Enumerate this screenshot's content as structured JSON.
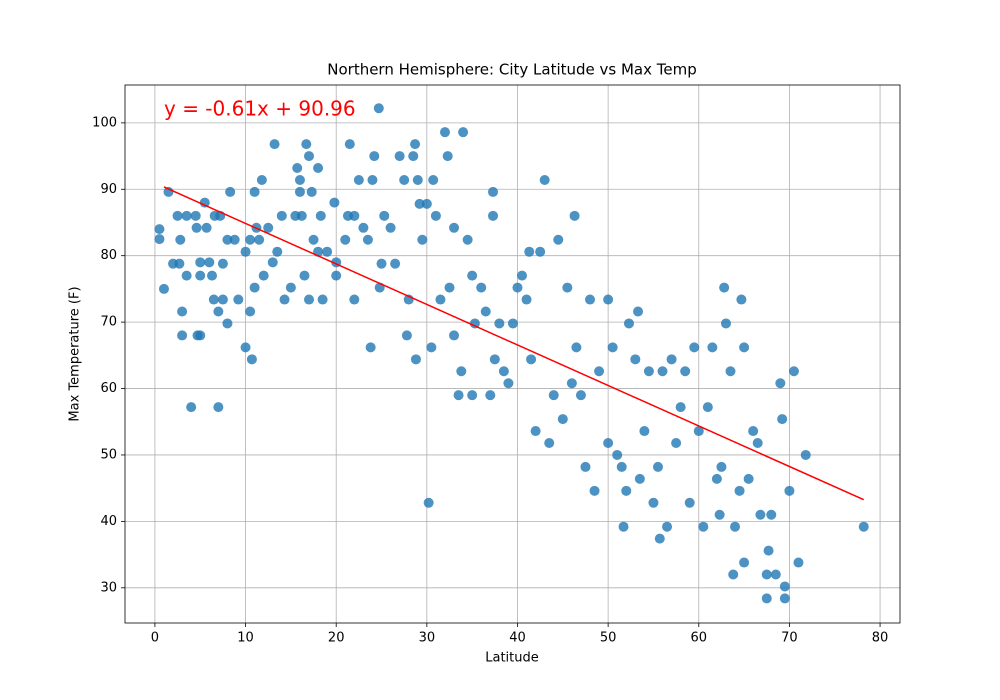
{
  "chart_data": {
    "type": "scatter",
    "title": "Northern Hemisphere: City Latitude vs Max Temp",
    "xlabel": "Latitude",
    "ylabel": "Max Temperature (F)",
    "annotation": "y = -0.61x + 90.96",
    "annotation_color": "#ff0000",
    "color": "#1f77b4",
    "grid": true,
    "xlim": [
      -3.3,
      82.2
    ],
    "ylim": [
      24.7,
      105.7
    ],
    "xticks": [
      0,
      10,
      20,
      30,
      40,
      50,
      60,
      70,
      80
    ],
    "yticks": [
      30,
      40,
      50,
      60,
      70,
      80,
      90,
      100
    ],
    "x": [
      0.5,
      0.5,
      1,
      1.5,
      2,
      2.5,
      2.7,
      2.8,
      3,
      3,
      3.5,
      3.5,
      4,
      4.5,
      4.6,
      4.7,
      5,
      5,
      5,
      5.5,
      5.7,
      6,
      6.3,
      6.5,
      6.6,
      7,
      7,
      7.2,
      7.5,
      7.5,
      8,
      8,
      8.3,
      8.8,
      9.2,
      10,
      10,
      10.5,
      10.5,
      10.7,
      11,
      11,
      11.2,
      11.5,
      11.8,
      12,
      12.5,
      13,
      13.2,
      13.5,
      14,
      14.3,
      15,
      15.5,
      15.7,
      16,
      16,
      16.2,
      16.5,
      16.7,
      17,
      17,
      17.3,
      17.5,
      18,
      18,
      18.3,
      18.5,
      19,
      19.8,
      20,
      20,
      21,
      21.3,
      21.5,
      22,
      22,
      22.5,
      23,
      23.5,
      23.8,
      24,
      24.2,
      24.7,
      24.8,
      25,
      25.3,
      26,
      26.5,
      27,
      27.5,
      27.8,
      28,
      28.5,
      28.7,
      28.8,
      29,
      29.2,
      29.5,
      30,
      30.2,
      30.5,
      30.7,
      31,
      31.5,
      32,
      32.3,
      32.5,
      33,
      33,
      33.5,
      33.8,
      34,
      34.5,
      35,
      35,
      35.3,
      36,
      36.5,
      37,
      37.3,
      37.3,
      37.5,
      38,
      38.5,
      39,
      39.5,
      40,
      40.5,
      41,
      41.3,
      41.5,
      42,
      42.5,
      43,
      43.5,
      44,
      44.5,
      45,
      45.5,
      46,
      46.3,
      46.5,
      47,
      47.5,
      48,
      48.5,
      49,
      50,
      50,
      50.5,
      51,
      51.5,
      51.7,
      52,
      52.3,
      53,
      53.3,
      53.5,
      54,
      54.5,
      55,
      55.5,
      55.7,
      56,
      56.5,
      57,
      57.5,
      58,
      58.5,
      59,
      59.5,
      60,
      60.5,
      61,
      61.5,
      62,
      62.3,
      62.5,
      62.8,
      63,
      63.5,
      63.8,
      64,
      64.5,
      64.7,
      65,
      65,
      65.5,
      66,
      66.5,
      66.8,
      67.5,
      67.5,
      67.7,
      68,
      68.5,
      69,
      69.2,
      69.5,
      69.5,
      70,
      70.5,
      71,
      71.8,
      78.2
    ],
    "values": [
      84,
      82.5,
      75,
      89.6,
      78.8,
      86,
      78.8,
      82.4,
      71.6,
      68,
      86,
      77,
      57.2,
      86,
      84.2,
      68,
      77,
      68,
      79,
      88,
      84.2,
      79,
      77,
      73.4,
      86,
      57.2,
      71.6,
      86,
      73.4,
      78.8,
      69.8,
      82.4,
      89.6,
      82.4,
      73.4,
      66.2,
      80.6,
      82.4,
      71.6,
      64.4,
      89.6,
      75.2,
      84.2,
      82.4,
      91.4,
      77,
      84.2,
      79,
      96.8,
      80.6,
      86,
      73.4,
      75.2,
      86,
      93.2,
      89.6,
      91.4,
      86,
      77,
      96.8,
      95,
      73.4,
      89.6,
      82.4,
      80.6,
      93.2,
      86,
      73.4,
      80.6,
      88,
      77,
      79,
      82.4,
      86,
      96.8,
      73.4,
      86,
      91.4,
      84.2,
      82.4,
      66.2,
      91.4,
      95,
      102.2,
      75.2,
      78.8,
      86,
      84.2,
      78.8,
      95,
      91.4,
      68,
      73.4,
      95,
      96.8,
      64.4,
      91.4,
      87.8,
      82.4,
      87.8,
      42.8,
      66.2,
      91.4,
      86,
      73.4,
      98.6,
      95,
      75.2,
      68,
      84.2,
      59,
      62.6,
      98.6,
      82.4,
      77,
      59,
      69.8,
      75.2,
      71.6,
      59,
      89.6,
      86,
      64.4,
      69.8,
      62.6,
      60.8,
      69.8,
      75.2,
      77,
      73.4,
      80.6,
      64.4,
      53.6,
      80.6,
      91.4,
      51.8,
      59,
      82.4,
      55.4,
      75.2,
      60.8,
      86,
      66.2,
      59,
      48.2,
      73.4,
      44.6,
      62.6,
      73.4,
      51.8,
      66.2,
      50,
      48.2,
      39.2,
      44.6,
      69.8,
      64.4,
      71.6,
      46.4,
      53.6,
      62.6,
      42.8,
      48.2,
      37.4,
      62.6,
      39.2,
      64.4,
      51.8,
      57.2,
      62.6,
      42.8,
      66.2,
      53.6,
      39.2,
      57.2,
      66.2,
      46.4,
      41,
      48.2,
      75.2,
      69.8,
      62.6,
      32,
      39.2,
      44.6,
      73.4,
      66.2,
      33.8,
      46.4,
      53.6,
      51.8,
      41,
      32,
      28.4,
      35.6,
      41,
      32,
      60.8,
      55.4,
      30.2,
      28.4,
      44.6,
      62.6,
      33.8,
      50,
      39.2
    ],
    "fit": {
      "x": [
        1,
        78.2
      ],
      "y": [
        90.35,
        43.26
      ],
      "color": "#ff0000"
    }
  }
}
